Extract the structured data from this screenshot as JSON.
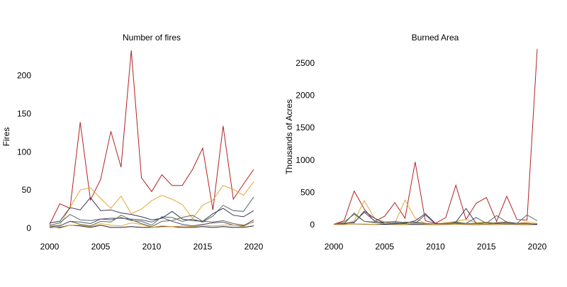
{
  "colors": [
    "#b22222",
    "#e0a83a",
    "#4f6b6b",
    "#3a3a5a",
    "#6b6b40",
    "#4f4f7a",
    "#1e1e2e",
    "#e0a83a"
  ],
  "chart_data": [
    {
      "type": "line",
      "title": "Number of fires",
      "xlabel": "",
      "ylabel": "Fires",
      "xlim": [
        2000,
        2020
      ],
      "ylim": [
        0,
        235
      ],
      "xticks": [
        2000,
        2005,
        2010,
        2015,
        2020
      ],
      "yticks": [
        0,
        50,
        100,
        150,
        200
      ],
      "grid": false,
      "x": [
        2000,
        2001,
        2002,
        2003,
        2004,
        2005,
        2006,
        2007,
        2008,
        2009,
        2010,
        2011,
        2012,
        2013,
        2014,
        2015,
        2016,
        2017,
        2018,
        2019,
        2020
      ],
      "series": [
        {
          "color": "#b22222",
          "values": [
            5,
            32,
            26,
            139,
            37,
            64,
            127,
            80,
            233,
            66,
            48,
            70,
            56,
            56,
            77,
            105,
            24,
            134,
            38,
            58,
            77
          ]
        },
        {
          "color": "#e0a83a",
          "values": [
            3,
            4,
            27,
            50,
            53,
            39,
            26,
            42,
            19,
            25,
            36,
            43,
            38,
            31,
            13,
            30,
            37,
            56,
            51,
            43,
            61
          ]
        },
        {
          "color": "#4f6b6b",
          "values": [
            4,
            7,
            18,
            11,
            10,
            12,
            11,
            14,
            10,
            9,
            4,
            15,
            14,
            9,
            12,
            8,
            16,
            30,
            23,
            22,
            41
          ]
        },
        {
          "color": "#3a3a5a",
          "values": [
            7,
            9,
            27,
            24,
            40,
            23,
            24,
            20,
            18,
            15,
            11,
            13,
            22,
            12,
            10,
            9,
            19,
            26,
            17,
            15,
            23
          ]
        },
        {
          "color": "#6b6b40",
          "values": [
            2,
            3,
            9,
            5,
            3,
            9,
            8,
            17,
            11,
            6,
            2,
            9,
            10,
            14,
            17,
            9,
            8,
            10,
            6,
            4,
            8
          ]
        },
        {
          "color": "#4f4f7a",
          "values": [
            2,
            3,
            9,
            8,
            6,
            12,
            13,
            13,
            12,
            11,
            8,
            14,
            9,
            5,
            3,
            5,
            7,
            8,
            4,
            3,
            11
          ]
        },
        {
          "color": "#1e1e2e",
          "values": [
            1,
            1,
            4,
            3,
            1,
            4,
            1,
            1,
            2,
            1,
            1,
            2,
            2,
            1,
            1,
            2,
            1,
            2,
            1,
            1,
            3
          ]
        },
        {
          "color": "#e0a83a",
          "values": [
            2,
            0,
            4,
            4,
            2,
            6,
            4,
            3,
            7,
            5,
            1,
            3,
            2,
            3,
            2,
            4,
            3,
            4,
            4,
            2,
            9
          ]
        }
      ]
    },
    {
      "type": "line",
      "title": "Burned Area",
      "xlabel": "",
      "ylabel": "Thousands of Acres",
      "xlim": [
        2000,
        2020
      ],
      "ylim": [
        0,
        2720
      ],
      "xticks": [
        2000,
        2005,
        2010,
        2015,
        2020
      ],
      "yticks": [
        0,
        500,
        1000,
        1500,
        2000,
        2500
      ],
      "grid": false,
      "x": [
        2000,
        2001,
        2002,
        2003,
        2004,
        2005,
        2006,
        2007,
        2008,
        2009,
        2010,
        2011,
        2012,
        2013,
        2014,
        2015,
        2016,
        2017,
        2018,
        2019,
        2020
      ],
      "series": [
        {
          "color": "#b22222",
          "values": [
            5,
            60,
            520,
            240,
            50,
            130,
            340,
            100,
            970,
            60,
            20,
            110,
            610,
            80,
            330,
            420,
            50,
            440,
            80,
            70,
            2720
          ]
        },
        {
          "color": "#e0a83a",
          "values": [
            2,
            10,
            60,
            370,
            100,
            40,
            20,
            380,
            100,
            20,
            10,
            30,
            50,
            80,
            30,
            40,
            20,
            30,
            20,
            40,
            20
          ]
        },
        {
          "color": "#4f6b6b",
          "values": [
            3,
            10,
            180,
            50,
            30,
            40,
            50,
            30,
            40,
            20,
            5,
            10,
            40,
            20,
            110,
            20,
            140,
            40,
            20,
            150,
            60
          ]
        },
        {
          "color": "#3a3a5a",
          "values": [
            2,
            20,
            30,
            210,
            100,
            20,
            30,
            20,
            60,
            170,
            20,
            10,
            40,
            250,
            20,
            10,
            30,
            40,
            20,
            20,
            10
          ]
        },
        {
          "color": "#6b6b40",
          "values": [
            5,
            40,
            160,
            50,
            40,
            20,
            10,
            40,
            30,
            20,
            10,
            20,
            30,
            20,
            20,
            30,
            20,
            10,
            20,
            10,
            10
          ]
        },
        {
          "color": "#4f4f7a",
          "values": [
            2,
            10,
            40,
            190,
            60,
            10,
            20,
            10,
            20,
            150,
            10,
            20,
            20,
            10,
            10,
            10,
            10,
            20,
            10,
            10,
            10
          ]
        },
        {
          "color": "#1e1e2e",
          "values": [
            1,
            2,
            10,
            5,
            2,
            5,
            2,
            2,
            3,
            2,
            1,
            3,
            5,
            2,
            1,
            3,
            2,
            5,
            2,
            1,
            3
          ]
        },
        {
          "color": "#e0a83a",
          "values": [
            1,
            2,
            10,
            10,
            5,
            20,
            10,
            5,
            20,
            10,
            5,
            10,
            5,
            10,
            5,
            10,
            5,
            10,
            10,
            5,
            20
          ]
        }
      ]
    }
  ]
}
